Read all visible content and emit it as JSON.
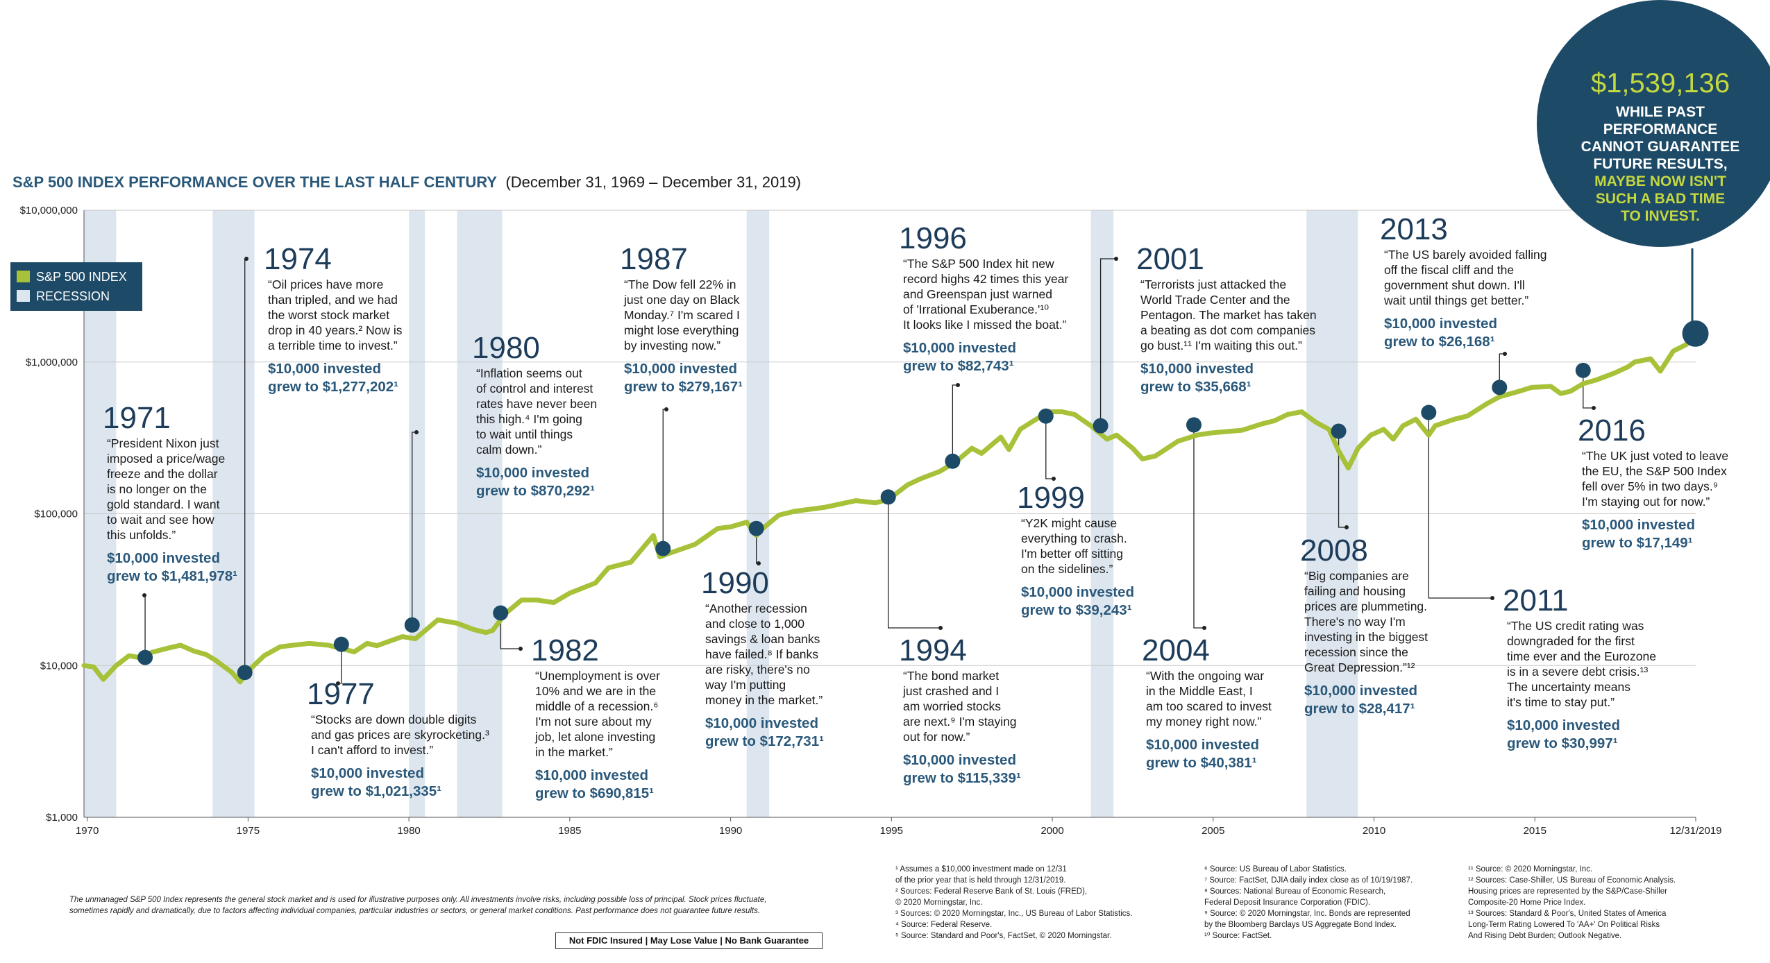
{
  "title": {
    "main": "S&P 500 INDEX PERFORMANCE OVER THE LAST HALF CENTURY",
    "range": "(December 31, 1969 – December 31, 2019)"
  },
  "legend": {
    "series": "S&P 500 INDEX",
    "recession": "RECESSION"
  },
  "callout": {
    "value": "$1,539,136",
    "lines": [
      "WHILE PAST",
      "PERFORMANCE",
      "CANNOT GUARANTEE",
      "FUTURE RESULTS,"
    ],
    "accent_lines": [
      "MAYBE NOW ISN'T",
      "SUCH A BAD TIME",
      "TO INVEST."
    ]
  },
  "colors": {
    "line": "#a7c139",
    "navy": "#1d4a66",
    "recession": "#dde6ee",
    "accent": "#c4d840"
  },
  "chart_data": {
    "type": "line",
    "y_scale": "log",
    "ylim": [
      1000,
      10000000
    ],
    "xlim": [
      1969.9,
      2020.0
    ],
    "y_ticks": [
      {
        "v": 1000,
        "label": "$1,000"
      },
      {
        "v": 10000,
        "label": "$10,000"
      },
      {
        "v": 100000,
        "label": "$100,000"
      },
      {
        "v": 1000000,
        "label": "$1,000,000"
      },
      {
        "v": 10000000,
        "label": "$10,000,000"
      }
    ],
    "x_ticks": [
      {
        "v": 1970,
        "label": "1970"
      },
      {
        "v": 1975,
        "label": "1975"
      },
      {
        "v": 1980,
        "label": "1980"
      },
      {
        "v": 1985,
        "label": "1985"
      },
      {
        "v": 1990,
        "label": "1990"
      },
      {
        "v": 1995,
        "label": "1995"
      },
      {
        "v": 2000,
        "label": "2000"
      },
      {
        "v": 2005,
        "label": "2005"
      },
      {
        "v": 2010,
        "label": "2010"
      },
      {
        "v": 2015,
        "label": "2015"
      },
      {
        "v": 2020,
        "label": "12/31/2019"
      }
    ],
    "recessions": [
      [
        1969.9,
        1970.9
      ],
      [
        1973.9,
        1975.2
      ],
      [
        1980.0,
        1980.5
      ],
      [
        1981.5,
        1982.9
      ],
      [
        1990.5,
        1991.2
      ],
      [
        2001.2,
        2001.9
      ],
      [
        2007.9,
        2009.5
      ]
    ],
    "series": [
      {
        "name": "S&P 500 INDEX",
        "points": [
          [
            1969.9,
            10000
          ],
          [
            1970.2,
            9800
          ],
          [
            1970.5,
            8100
          ],
          [
            1970.9,
            10000
          ],
          [
            1971.3,
            11600
          ],
          [
            1971.7,
            11200
          ],
          [
            1972.0,
            12200
          ],
          [
            1972.5,
            13000
          ],
          [
            1972.9,
            13600
          ],
          [
            1973.3,
            12500
          ],
          [
            1973.7,
            11800
          ],
          [
            1974.0,
            10800
          ],
          [
            1974.5,
            9000
          ],
          [
            1974.75,
            7800
          ],
          [
            1975.0,
            9200
          ],
          [
            1975.5,
            11600
          ],
          [
            1976.0,
            13300
          ],
          [
            1976.9,
            14000
          ],
          [
            1977.5,
            13600
          ],
          [
            1978.0,
            12800
          ],
          [
            1978.3,
            12300
          ],
          [
            1978.7,
            14000
          ],
          [
            1979.0,
            13500
          ],
          [
            1979.8,
            15500
          ],
          [
            1980.2,
            15000
          ],
          [
            1980.9,
            20000
          ],
          [
            1981.5,
            19000
          ],
          [
            1982.0,
            17300
          ],
          [
            1982.4,
            16500
          ],
          [
            1982.6,
            17000
          ],
          [
            1983.0,
            22000
          ],
          [
            1983.5,
            27000
          ],
          [
            1984.0,
            27000
          ],
          [
            1984.5,
            26000
          ],
          [
            1985.0,
            30000
          ],
          [
            1985.8,
            35000
          ],
          [
            1986.2,
            44000
          ],
          [
            1986.9,
            48000
          ],
          [
            1987.6,
            72000
          ],
          [
            1987.8,
            52000
          ],
          [
            1988.0,
            54000
          ],
          [
            1988.9,
            63000
          ],
          [
            1989.6,
            80000
          ],
          [
            1990.0,
            82000
          ],
          [
            1990.5,
            88000
          ],
          [
            1990.8,
            72000
          ],
          [
            1991.0,
            80000
          ],
          [
            1991.5,
            98000
          ],
          [
            1992.0,
            104000
          ],
          [
            1992.9,
            110000
          ],
          [
            1993.9,
            122000
          ],
          [
            1994.5,
            118000
          ],
          [
            1994.9,
            124000
          ],
          [
            1995.5,
            155000
          ],
          [
            1995.9,
            170000
          ],
          [
            1996.5,
            190000
          ],
          [
            1997.0,
            220000
          ],
          [
            1997.5,
            270000
          ],
          [
            1997.8,
            250000
          ],
          [
            1998.4,
            320000
          ],
          [
            1998.65,
            265000
          ],
          [
            1999.0,
            360000
          ],
          [
            1999.5,
            420000
          ],
          [
            1999.9,
            470000
          ],
          [
            2000.3,
            470000
          ],
          [
            2000.7,
            450000
          ],
          [
            2000.9,
            420000
          ],
          [
            2001.2,
            380000
          ],
          [
            2001.7,
            310000
          ],
          [
            2002.0,
            330000
          ],
          [
            2002.5,
            270000
          ],
          [
            2002.8,
            230000
          ],
          [
            2003.2,
            240000
          ],
          [
            2003.9,
            300000
          ],
          [
            2004.5,
            330000
          ],
          [
            2004.9,
            340000
          ],
          [
            2005.9,
            355000
          ],
          [
            2006.5,
            390000
          ],
          [
            2006.9,
            410000
          ],
          [
            2007.3,
            450000
          ],
          [
            2007.75,
            470000
          ],
          [
            2008.2,
            400000
          ],
          [
            2008.6,
            360000
          ],
          [
            2008.9,
            260000
          ],
          [
            2009.2,
            200000
          ],
          [
            2009.5,
            270000
          ],
          [
            2009.9,
            330000
          ],
          [
            2010.3,
            360000
          ],
          [
            2010.6,
            310000
          ],
          [
            2010.9,
            380000
          ],
          [
            2011.3,
            420000
          ],
          [
            2011.7,
            330000
          ],
          [
            2011.9,
            380000
          ],
          [
            2012.5,
            420000
          ],
          [
            2012.9,
            440000
          ],
          [
            2013.5,
            530000
          ],
          [
            2013.9,
            590000
          ],
          [
            2014.5,
            640000
          ],
          [
            2014.9,
            680000
          ],
          [
            2015.5,
            690000
          ],
          [
            2015.8,
            620000
          ],
          [
            2016.1,
            640000
          ],
          [
            2016.5,
            720000
          ],
          [
            2016.9,
            760000
          ],
          [
            2017.5,
            850000
          ],
          [
            2017.9,
            930000
          ],
          [
            2018.1,
            1000000
          ],
          [
            2018.6,
            1050000
          ],
          [
            2018.9,
            870000
          ],
          [
            2019.3,
            1180000
          ],
          [
            2019.7,
            1300000
          ],
          [
            2019.99,
            1539136
          ]
        ]
      }
    ],
    "events": [
      {
        "year": "1971",
        "x": 1971.8,
        "y": 11300,
        "quote": [
          "“President Nixon just",
          "imposed a price/wage",
          "freeze and the dollar",
          "is no longer on the",
          "gold standard. I want",
          "to wait and see how",
          "this unfolds.”"
        ],
        "result": [
          "$10,000 invested",
          "grew to $1,481,978¹"
        ]
      },
      {
        "year": "1974",
        "x": 1974.9,
        "y": 9000,
        "quote": [
          "“Oil prices have more",
          "than tripled, and we had",
          "the worst stock market",
          "drop in 40 years.² Now is",
          "a terrible time to invest.”"
        ],
        "result": [
          "$10,000 invested",
          "grew to $1,277,202¹"
        ]
      },
      {
        "year": "1977",
        "x": 1977.9,
        "y": 13800,
        "quote": [
          "“Stocks are down double digits",
          "and gas prices are skyrocketing.³",
          "I can't afford to invest.”"
        ],
        "result": [
          "$10,000 invested",
          "grew to $1,021,335¹"
        ]
      },
      {
        "year": "1980",
        "x": 1980.1,
        "y": 18500,
        "quote": [
          "“Inflation seems out",
          "of control and interest",
          "rates have never been",
          "this high.⁴ I'm going",
          "to wait until things",
          "calm down.”"
        ],
        "result": [
          "$10,000 invested",
          "grew to $870,292¹"
        ]
      },
      {
        "year": "1982",
        "x": 1982.85,
        "y": 22200,
        "quote": [
          "“Unemployment is over",
          "10% and we are in the",
          "middle of a recession.⁶",
          "I'm not sure about my",
          "job, let alone investing",
          "in the market.”"
        ],
        "result": [
          "$10,000 invested",
          "grew to $690,815¹"
        ]
      },
      {
        "year": "1987",
        "x": 1987.9,
        "y": 59000,
        "quote": [
          "“The Dow fell 22% in",
          "just one day on Black",
          "Monday.⁷ I'm scared I",
          "might lose everything",
          "by investing now.”"
        ],
        "result": [
          "$10,000 invested",
          "grew to $279,167¹"
        ]
      },
      {
        "year": "1990",
        "x": 1990.8,
        "y": 80000,
        "quote": [
          "“Another recession",
          "and close to 1,000",
          "savings & loan banks",
          "have failed.⁸ If banks",
          "are risky, there's no",
          "way I'm putting",
          "money in the market.”"
        ],
        "result": [
          "$10,000 invested",
          "grew to $172,731¹"
        ]
      },
      {
        "year": "1994",
        "x": 1994.9,
        "y": 129000,
        "quote": [
          "“The bond market",
          "just crashed and I",
          "am worried stocks",
          "are next.⁹ I'm staying",
          "out for now.”"
        ],
        "result": [
          "$10,000 invested",
          "grew to $115,339¹"
        ]
      },
      {
        "year": "1996",
        "x": 1996.9,
        "y": 222000,
        "quote": [
          "“The S&P 500 Index hit new",
          "record highs 42 times this year",
          "and Greenspan just warned",
          "of 'Irrational Exuberance.'¹⁰",
          "It looks like I missed the boat.”"
        ],
        "result": [
          "$10,000 invested",
          "grew to $82,743¹"
        ]
      },
      {
        "year": "1999",
        "x": 1999.8,
        "y": 440000,
        "quote": [
          "“Y2K might cause",
          "everything to crash.",
          "I'm better off sitting",
          "on the sidelines.”"
        ],
        "result": [
          "$10,000 invested",
          "grew to $39,243¹"
        ]
      },
      {
        "year": "2001",
        "x": 2001.5,
        "y": 380000,
        "quote": [
          "“Terrorists just attacked the",
          "World Trade Center and the",
          "Pentagon. The market has taken",
          "a beating as dot com companies",
          "go bust.¹¹ I'm waiting this out.”"
        ],
        "result": [
          "$10,000 invested",
          "grew to $35,668¹"
        ]
      },
      {
        "year": "2004",
        "x": 2004.4,
        "y": 385000,
        "quote": [
          "“With the ongoing war",
          "in the Middle East, I",
          "am too scared to invest",
          "my money right now.”"
        ],
        "result": [
          "$10,000 invested",
          "grew to $40,381¹"
        ]
      },
      {
        "year": "2008",
        "x": 2008.9,
        "y": 350000,
        "quote": [
          "“Big companies are",
          "failing and housing",
          "prices are plummeting.",
          "There's no way I'm",
          "investing in the biggest",
          "recession since the",
          "Great Depression.”¹²"
        ],
        "result": [
          "$10,000 invested",
          "grew to $28,417¹"
        ]
      },
      {
        "year": "2011",
        "x": 2011.7,
        "y": 465000,
        "quote": [
          "“The US credit rating was",
          "downgraded for the first",
          "time ever and the Eurozone",
          "is in a severe debt crisis.¹³",
          "The uncertainty means",
          "it's time to stay put.”"
        ],
        "result": [
          "$10,000 invested",
          "grew to $30,997¹"
        ]
      },
      {
        "year": "2013",
        "x": 2013.9,
        "y": 680000,
        "quote": [
          "“The US barely avoided falling",
          "off the fiscal cliff and the",
          "government shut down. I'll",
          "wait until things get better.”"
        ],
        "result": [
          "$10,000 invested",
          "grew to $26,168¹"
        ]
      },
      {
        "year": "2016",
        "x": 2016.5,
        "y": 880000,
        "quote": [
          "“The UK just voted to leave",
          "the EU, the S&P 500 Index",
          "fell over 5% in two days.⁹",
          "I'm staying out for now.”"
        ],
        "result": [
          "$10,000 invested",
          "grew to $17,149¹"
        ]
      }
    ]
  },
  "disclaimer": [
    "The unmanaged S&P 500 Index represents the general stock market and is used for illustrative purposes only. All investments involve risks, including possible loss of principal. Stock prices fluctuate,",
    "sometimes rapidly and dramatically, due to factors affecting individual companies, particular industries or sectors, or general market conditions. Past performance does not guarantee future results."
  ],
  "badges": "Not FDIC Insured  |  May Lose Value  |  No Bank Guarantee",
  "footnotes": [
    [
      "¹ Assumes a $10,000 investment made on 12/31",
      "   of the prior year that is held through 12/31/2019.",
      "² Sources: Federal Reserve Bank of St. Louis (FRED),",
      "   © 2020 Morningstar, Inc.",
      "³ Sources: © 2020 Morningstar, Inc., US Bureau of Labor Statistics.",
      "⁴ Source: Federal Reserve.",
      "⁵ Source: Standard and Poor's, FactSet, © 2020 Morningstar."
    ],
    [
      "⁶ Source: US Bureau of Labor Statistics.",
      "⁷ Source: FactSet, DJIA daily index close as of 10/19/1987.",
      "⁸ Sources: National Bureau of Economic Research,",
      "   Federal Deposit Insurance Corporation (FDIC).",
      "⁹ Source: © 2020 Morningstar, Inc. Bonds are represented",
      "   by the Bloomberg Barclays US Aggregate Bond Index.",
      "¹⁰ Source: FactSet."
    ],
    [
      "¹¹ Source: © 2020 Morningstar, Inc.",
      "¹² Sources: Case-Shiller, US Bureau of Economic Analysis.",
      "    Housing prices are represented by the S&P/Case-Shiller",
      "    Composite-20 Home Price Index.",
      "¹³ Sources: Standard & Poor's, United States of America",
      "    Long-Term Rating Lowered To 'AA+' On Political Risks",
      "    And Rising Debt Burden; Outlook Negative."
    ]
  ]
}
